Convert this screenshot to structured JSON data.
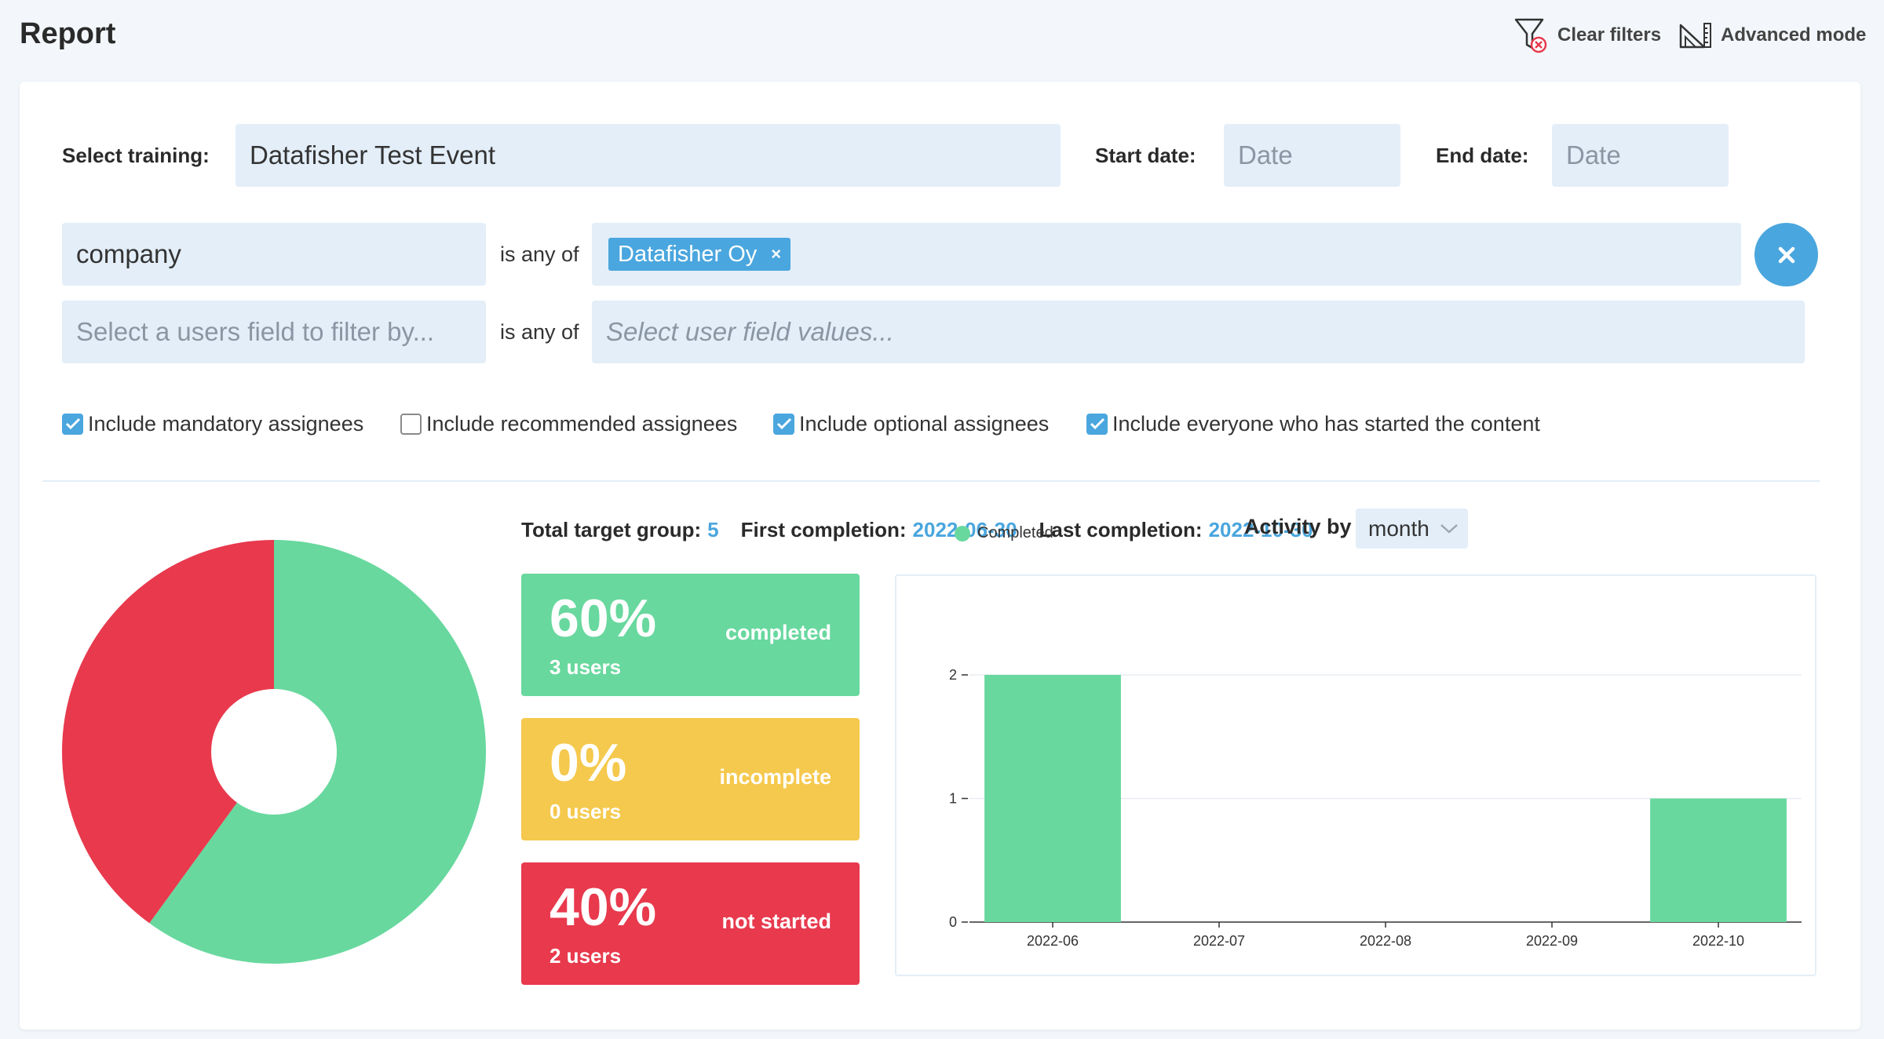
{
  "header": {
    "title": "Report",
    "clear_filters": "Clear filters",
    "advanced_mode": "Advanced mode"
  },
  "filters": {
    "training_label": "Select training:",
    "training_value": "Datafisher Test Event",
    "start_label": "Start date:",
    "start_placeholder": "Date",
    "end_label": "End date:",
    "end_placeholder": "Date",
    "rows": [
      {
        "field": "company",
        "operator": "is any of",
        "chip": "Datafisher Oy",
        "chip_remove": "×"
      },
      {
        "field_placeholder": "Select a users field to filter by...",
        "operator": "is any of",
        "values_placeholder": "Select user field values..."
      }
    ],
    "checkboxes": [
      {
        "label": "Include mandatory assignees",
        "checked": true
      },
      {
        "label": "Include recommended assignees",
        "checked": false
      },
      {
        "label": "Include optional assignees",
        "checked": true
      },
      {
        "label": "Include everyone who has started the content",
        "checked": true
      }
    ]
  },
  "summary": {
    "total_label": "Total target group:",
    "total_value": "5",
    "first_label": "First completion:",
    "first_value": "2022-06-30",
    "last_label": "Last completion:",
    "last_value": "2022-10-30"
  },
  "stats": [
    {
      "pct": "60%",
      "users": "3 users",
      "state": "completed",
      "color": "#68d89e"
    },
    {
      "pct": "0%",
      "users": "0 users",
      "state": "incomplete",
      "color": "#f5c94d"
    },
    {
      "pct": "40%",
      "users": "2 users",
      "state": "not started",
      "color": "#e8394d"
    }
  ],
  "activity": {
    "label": "Activity by",
    "period": "month"
  },
  "chart_data": [
    {
      "type": "pie",
      "labels": [
        "completed",
        "incomplete",
        "not started"
      ],
      "values": [
        60,
        0,
        40
      ],
      "colors": [
        "#68d89e",
        "#f5c94d",
        "#e8394d"
      ]
    },
    {
      "type": "bar",
      "categories": [
        "2022-06",
        "2022-07",
        "2022-08",
        "2022-09",
        "2022-10"
      ],
      "series": [
        {
          "name": "Completed",
          "values": [
            2,
            0,
            0,
            0,
            1
          ],
          "color": "#68d89e"
        }
      ],
      "yticks": [
        "0",
        "1",
        "2"
      ],
      "ylim": [
        0,
        2
      ],
      "legend": "top-left",
      "grid": true
    }
  ]
}
